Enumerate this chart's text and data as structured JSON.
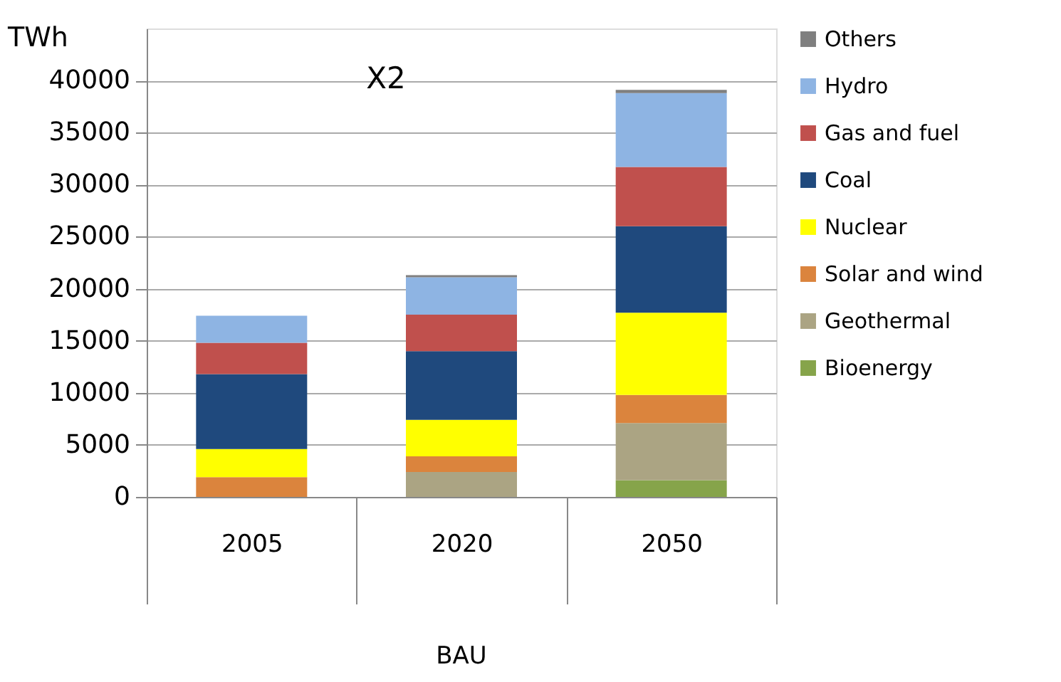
{
  "chart_data": {
    "type": "bar",
    "stacked": true,
    "ylabel": "TWh",
    "categories": [
      "2005",
      "2020",
      "2050"
    ],
    "series": [
      {
        "name": "Bioenergy",
        "color": "#86a44a",
        "values": [
          0,
          0,
          1600
        ]
      },
      {
        "name": "Geothermal",
        "color": "#aba483",
        "values": [
          0,
          2400,
          5500
        ]
      },
      {
        "name": "Solar and wind",
        "color": "#db843d",
        "values": [
          1900,
          1500,
          2700
        ]
      },
      {
        "name": "Nuclear",
        "color": "#ffff00",
        "values": [
          2700,
          3500,
          7900
        ]
      },
      {
        "name": "Coal",
        "color": "#1f497d",
        "values": [
          7200,
          6600,
          8300
        ]
      },
      {
        "name": "Gas and fuel",
        "color": "#c0504d",
        "values": [
          3000,
          3500,
          5700
        ]
      },
      {
        "name": "Hydro",
        "color": "#8eb4e3",
        "values": [
          2600,
          3600,
          7100
        ]
      },
      {
        "name": "Others",
        "color": "#7f7f7f",
        "values": [
          0,
          200,
          300
        ]
      }
    ],
    "ylim": [
      0,
      45000
    ],
    "yticks": [
      0,
      5000,
      10000,
      15000,
      20000,
      25000,
      30000,
      35000,
      40000
    ],
    "grid": "y",
    "legend": "right",
    "annotations": [
      "X2",
      "BAU"
    ]
  }
}
